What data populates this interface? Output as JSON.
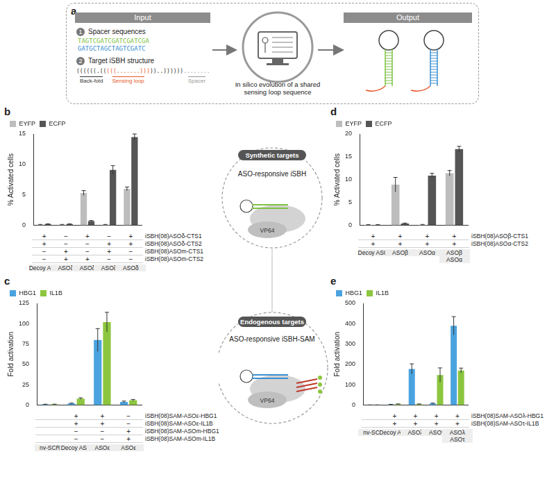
{
  "panel_a": {
    "label": "a",
    "input_title": "Input",
    "items": [
      {
        "number": "1",
        "title": "Spacer sequences",
        "sequences": [
          {
            "text": "TAGTCGATCGATCGATCGA",
            "color": "#7dc242"
          },
          {
            "text": "GATGCTAGCTAGTCGATC",
            "color": "#3a8fd0"
          }
        ]
      },
      {
        "number": "2",
        "title": "Target iSBH structure",
        "structure": [
          {
            "text": "((((((.((",
            "color": "#333333",
            "part": "Back-fold"
          },
          {
            "text": "(((.......)))",
            "color": "#e8562a",
            "part": "Sensing loop"
          },
          {
            "text": "))..))))))",
            "color": "#333333"
          },
          {
            "text": "........",
            "color": "#999999",
            "part": "Spacer"
          }
        ]
      }
    ],
    "process": "In silico evolution of a shared sensing loop sequence",
    "output_title": "Output"
  },
  "center": {
    "synthetic": {
      "title": "Synthetic targets",
      "label": "ASO-responsive iSBH",
      "protein": "VP64"
    },
    "endogenous": {
      "title": "Endogenous targets",
      "label": "ASO-responsive iSBH-SAM",
      "protein": "VP64"
    }
  },
  "chart_data": [
    {
      "panel": "b",
      "type": "bar",
      "ylabel": "% Activated cells",
      "categories": [
        "Decoy ASO",
        "ASOδ",
        "ASOδ",
        "ASOδ",
        "ASOδ"
      ],
      "series": [
        {
          "name": "EYFP",
          "color": "#bdbdbd",
          "values": [
            0.1,
            0.1,
            5.3,
            0.1,
            6.0
          ],
          "errors": [
            0.05,
            0.05,
            0.4,
            0.05,
            0.3
          ]
        },
        {
          "name": "ECFP",
          "color": "#555555",
          "values": [
            0.2,
            0.2,
            0.7,
            9.1,
            14.5
          ],
          "errors": [
            0.05,
            0.05,
            0.1,
            0.7,
            0.5
          ]
        }
      ],
      "ylim": [
        0,
        15
      ],
      "yticks": [
        0,
        5,
        10,
        15
      ],
      "grid": false,
      "legend": "upper left",
      "tick_labels": "y",
      "table": [
        {
          "label": "iSBH(08)ASOδ-CTS1",
          "marks": [
            "+",
            "−",
            "+",
            "−",
            "+"
          ]
        },
        {
          "label": "iSBH(08)ASOδ-CTS2",
          "marks": [
            "+",
            "−",
            "−",
            "+",
            "+"
          ]
        },
        {
          "label": "iSBH(08)ASOm-CTS1",
          "marks": [
            "−",
            "+",
            "−",
            "+",
            "−"
          ]
        },
        {
          "label": "iSBH(08)ASOm-CTS2",
          "marks": [
            "−",
            "+",
            "+",
            "−",
            "−"
          ]
        }
      ]
    },
    {
      "panel": "c",
      "type": "bar",
      "ylabel": "Fold activation",
      "categories": [
        "nv-SCR",
        "Decoy ASO",
        "ASOε",
        "ASOε"
      ],
      "series": [
        {
          "name": "HBG1",
          "color": "#4aa3df",
          "values": [
            1,
            2,
            80,
            4
          ],
          "errors": [
            0.2,
            0.5,
            14,
            1
          ]
        },
        {
          "name": "IL1B",
          "color": "#8cc63f",
          "values": [
            1,
            8,
            102,
            6
          ],
          "errors": [
            0.2,
            1,
            12,
            1
          ]
        }
      ],
      "ylim": [
        0,
        125
      ],
      "yticks": [
        0,
        25,
        50,
        75,
        100,
        125
      ],
      "grid": false,
      "legend": "upper left",
      "tick_labels": "y",
      "table": [
        {
          "label": "iSBH(08)SAM-ASOε-HBG1",
          "marks": [
            null,
            "+",
            "+",
            "−"
          ]
        },
        {
          "label": "iSBH(08)SAM-ASOε-IL1B",
          "marks": [
            null,
            "+",
            "+",
            "−"
          ]
        },
        {
          "label": "iSBH(08)SAM-ASOm-HBG1",
          "marks": [
            null,
            "−",
            "−",
            "+"
          ]
        },
        {
          "label": "iSBH(08)SAM-ASOm-IL1B",
          "marks": [
            null,
            "−",
            "−",
            "+"
          ]
        }
      ]
    },
    {
      "panel": "d",
      "type": "bar",
      "ylabel": "% Activated cells",
      "categories": [
        "Decoy ASO",
        "ASOβ",
        "ASOα",
        "ASOβ\nASOα"
      ],
      "series": [
        {
          "name": "EYFP",
          "color": "#bdbdbd",
          "values": [
            0.1,
            8.9,
            0.1,
            11.4
          ],
          "errors": [
            0.05,
            1.6,
            0.1,
            0.6
          ]
        },
        {
          "name": "ECFP",
          "color": "#555555",
          "values": [
            0.1,
            0.4,
            10.9,
            16.7
          ],
          "errors": [
            0.05,
            0.1,
            0.5,
            0.6
          ]
        }
      ],
      "ylim": [
        0,
        20
      ],
      "yticks": [
        0,
        5,
        10,
        15,
        20
      ],
      "grid": false,
      "legend": "upper left",
      "tick_labels": "y",
      "table": [
        {
          "label": "iSBH(08)ASOβ-CTS1",
          "marks": [
            "+",
            "+",
            "+",
            "+"
          ]
        },
        {
          "label": "iSBH(08)ASOα-CTS2",
          "marks": [
            "+",
            "+",
            "+",
            "+"
          ]
        }
      ]
    },
    {
      "panel": "e",
      "type": "bar",
      "ylabel": "Fold activation",
      "categories": [
        "nv-SCR",
        "Decoy ASO",
        "ASOλ",
        "ASOτ",
        "ASOλ\nASOτ"
      ],
      "series": [
        {
          "name": "HBG1",
          "color": "#4aa3df",
          "values": [
            1,
            3,
            178,
            8,
            390
          ],
          "errors": [
            0.3,
            1,
            25,
            2,
            45
          ]
        },
        {
          "name": "IL1B",
          "color": "#8cc63f",
          "values": [
            1,
            5,
            5,
            148,
            170
          ],
          "errors": [
            0.3,
            1,
            1,
            35,
            12
          ]
        }
      ],
      "ylim": [
        0,
        500
      ],
      "yticks": [
        0,
        100,
        200,
        300,
        400,
        500
      ],
      "grid": false,
      "legend": "upper left",
      "tick_labels": "y",
      "table": [
        {
          "label": "iSBH(08)SAM-ASOλ-HBG1",
          "marks": [
            null,
            "+",
            "+",
            "+",
            "+"
          ]
        },
        {
          "label": "iSBH(08)SAM-ASOτ-IL1B",
          "marks": [
            null,
            "+",
            "+",
            "+",
            "+"
          ]
        }
      ]
    }
  ]
}
